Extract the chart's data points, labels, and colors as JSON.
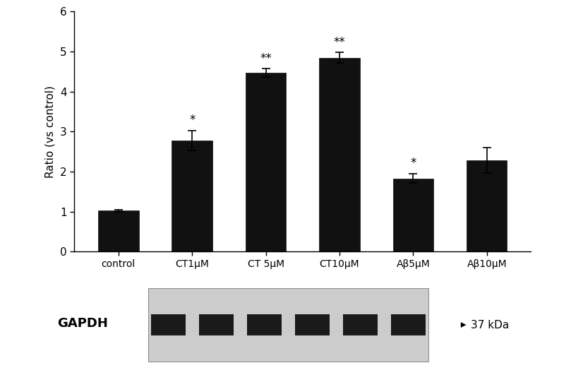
{
  "categories": [
    "control",
    "CT1μM",
    "CT 5μM",
    "CT10μM",
    "Aβ5μM",
    "Aβ10μM"
  ],
  "values": [
    1.02,
    2.78,
    4.47,
    4.85,
    1.83,
    2.28
  ],
  "errors": [
    0.03,
    0.25,
    0.1,
    0.13,
    0.12,
    0.32
  ],
  "bar_color": "#111111",
  "ylabel": "Ratio (vs control)",
  "ylim": [
    0,
    6
  ],
  "yticks": [
    0,
    1,
    2,
    3,
    4,
    5,
    6
  ],
  "significance": [
    "",
    "*",
    "**",
    "**",
    "*",
    ""
  ],
  "background_color": "#ffffff",
  "bar_width": 0.55,
  "gapdh_label": "GAPDH",
  "kda_label": "37 kDa"
}
